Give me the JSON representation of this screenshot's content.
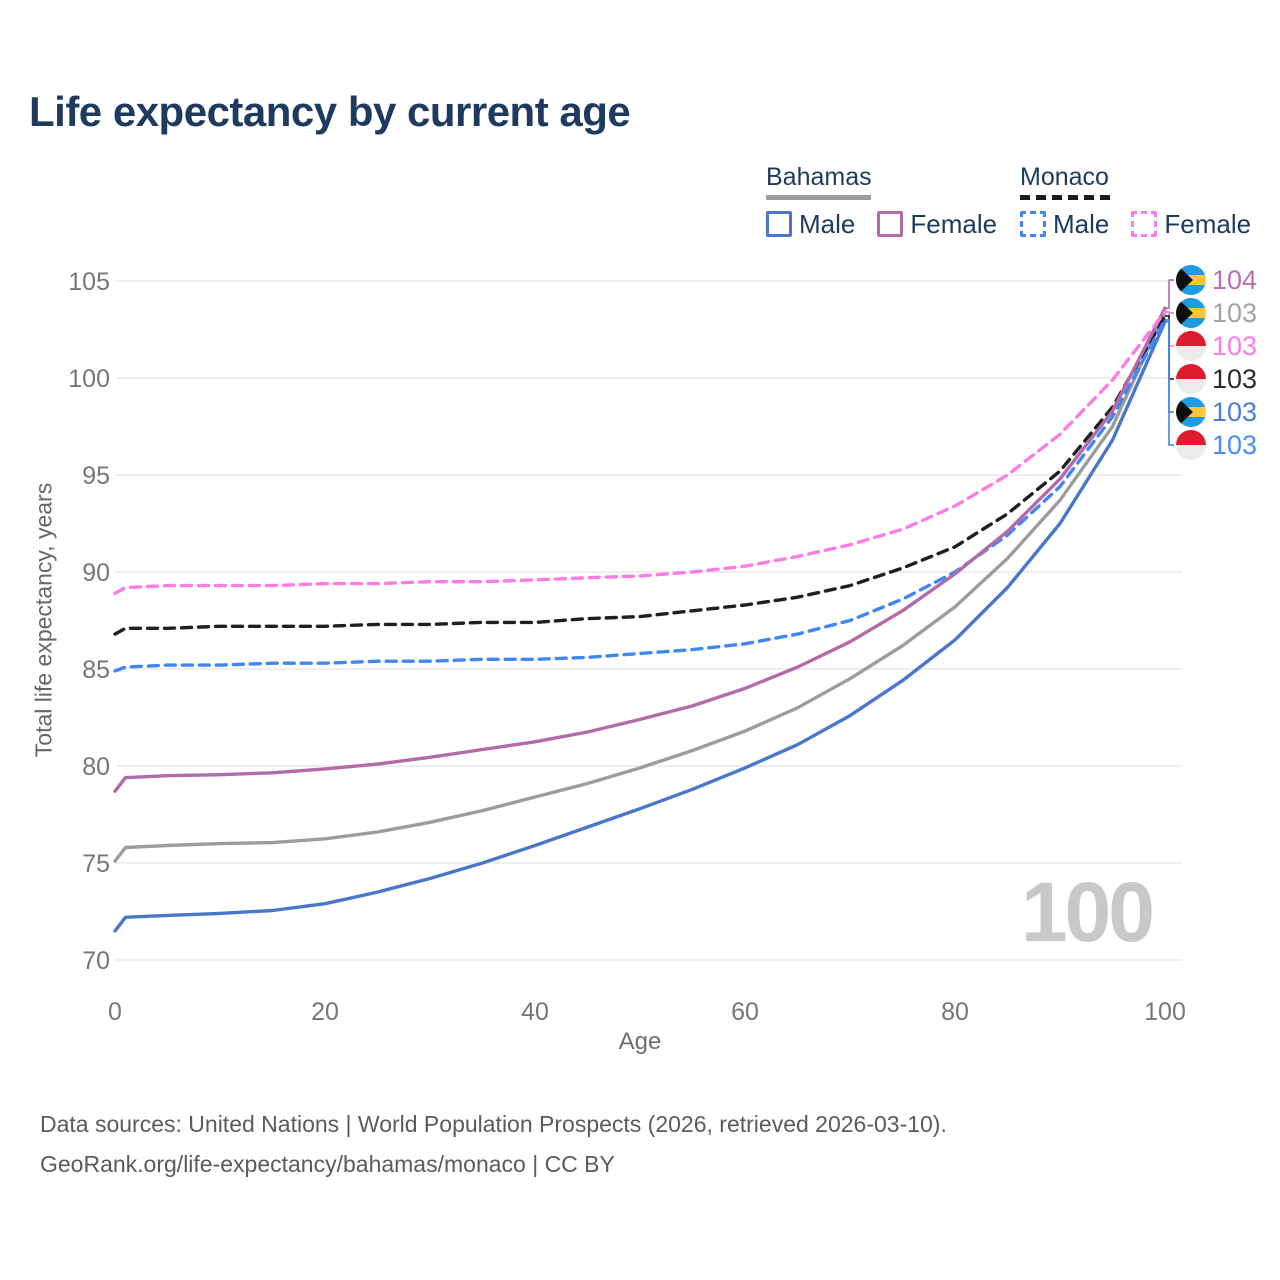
{
  "header": {
    "title": "Life expectancy by current age"
  },
  "legend": {
    "groups": [
      {
        "country": "Bahamas",
        "line_color": "#9d9d9d",
        "line_style": "solid",
        "items": [
          {
            "label": "Male",
            "color": "#4a77c9",
            "style": "solid"
          },
          {
            "label": "Female",
            "color": "#b26ba8",
            "style": "solid"
          }
        ]
      },
      {
        "country": "Monaco",
        "line_color": "#1a1a1a",
        "line_style": "dashed",
        "items": [
          {
            "label": "Male",
            "color": "#4187f2",
            "style": "dashed"
          },
          {
            "label": "Female",
            "color": "#fb7de4",
            "style": "dashed"
          }
        ]
      }
    ]
  },
  "chart_data": {
    "type": "line",
    "title": "Life expectancy by current age",
    "xlabel": "Age",
    "ylabel": "Total life expectancy, years",
    "xlim": [
      0,
      100
    ],
    "ylim": [
      70,
      105
    ],
    "x_ticks": [
      0,
      20,
      40,
      60,
      80,
      100
    ],
    "y_ticks": [
      70,
      75,
      80,
      85,
      90,
      95,
      100,
      105
    ],
    "grid": "horizontal",
    "legend_position": "top-right",
    "watermark": "100",
    "x": [
      0,
      1,
      5,
      10,
      15,
      20,
      25,
      30,
      35,
      40,
      45,
      50,
      55,
      60,
      65,
      70,
      75,
      80,
      85,
      90,
      95,
      100
    ],
    "series": [
      {
        "id": "bahamas-all",
        "name": "Bahamas (both sexes)",
        "color": "#9c9c9c",
        "dash": "solid",
        "values": [
          75.1,
          75.8,
          75.9,
          76.0,
          76.05,
          76.25,
          76.6,
          77.1,
          77.7,
          78.4,
          79.1,
          79.9,
          80.8,
          81.8,
          83.0,
          84.5,
          86.2,
          88.2,
          90.7,
          93.7,
          97.5,
          103.4
        ]
      },
      {
        "id": "monaco-all",
        "name": "Monaco (both sexes)",
        "color": "#1f1f1f",
        "dash": "dashed",
        "values": [
          86.8,
          87.1,
          87.1,
          87.2,
          87.2,
          87.2,
          87.3,
          87.3,
          87.4,
          87.4,
          87.6,
          87.7,
          88.0,
          88.3,
          88.7,
          89.3,
          90.2,
          91.3,
          93.0,
          95.2,
          98.5,
          103.2
        ]
      },
      {
        "id": "bahamas-male",
        "name": "Bahamas Male",
        "color": "#4a77c9",
        "dash": "solid",
        "values": [
          71.5,
          72.2,
          72.3,
          72.4,
          72.55,
          72.9,
          73.5,
          74.2,
          75.0,
          75.9,
          76.85,
          77.8,
          78.8,
          79.9,
          81.1,
          82.6,
          84.4,
          86.5,
          89.2,
          92.5,
          96.8,
          102.9
        ]
      },
      {
        "id": "monaco-male",
        "name": "Monaco Male",
        "color": "#4187f2",
        "dash": "dashed",
        "values": [
          84.9,
          85.1,
          85.2,
          85.2,
          85.3,
          85.3,
          85.4,
          85.4,
          85.5,
          85.5,
          85.6,
          85.8,
          86.0,
          86.3,
          86.8,
          87.5,
          88.6,
          90.0,
          91.9,
          94.4,
          98.0,
          103.0
        ]
      },
      {
        "id": "bahamas-female",
        "name": "Bahamas Female",
        "color": "#b26ba8",
        "dash": "solid",
        "values": [
          78.7,
          79.4,
          79.5,
          79.55,
          79.65,
          79.85,
          80.1,
          80.45,
          80.85,
          81.25,
          81.75,
          82.4,
          83.1,
          84.0,
          85.1,
          86.4,
          88.0,
          89.9,
          92.1,
          94.8,
          98.3,
          103.6
        ]
      },
      {
        "id": "monaco-female",
        "name": "Monaco Female",
        "color": "#fb7de4",
        "dash": "dashed",
        "values": [
          88.9,
          89.2,
          89.3,
          89.3,
          89.3,
          89.4,
          89.4,
          89.5,
          89.5,
          89.6,
          89.7,
          89.8,
          90.0,
          90.3,
          90.8,
          91.4,
          92.2,
          93.4,
          95.0,
          97.1,
          99.9,
          103.4
        ]
      }
    ],
    "end_labels": [
      {
        "series": "bahamas-female",
        "flag": "bahamas",
        "value": "104",
        "color": "#b671ae"
      },
      {
        "series": "bahamas-all",
        "flag": "bahamas",
        "value": "103",
        "color": "#a3a3a3"
      },
      {
        "series": "monaco-female",
        "flag": "monaco",
        "value": "103",
        "color": "#fb7de4"
      },
      {
        "series": "monaco-all",
        "flag": "monaco",
        "value": "103",
        "color": "#2c2c2c"
      },
      {
        "series": "bahamas-male",
        "flag": "bahamas",
        "value": "103",
        "color": "#4a7fd0"
      },
      {
        "series": "monaco-male",
        "flag": "monaco",
        "value": "103",
        "color": "#4a8ef5"
      }
    ]
  },
  "footer": {
    "line1": "Data sources: United Nations | World Population Prospects (2026, retrieved 2026-03-10).",
    "line2": "GeoRank.org/life-expectancy/bahamas/monaco | CC BY"
  }
}
